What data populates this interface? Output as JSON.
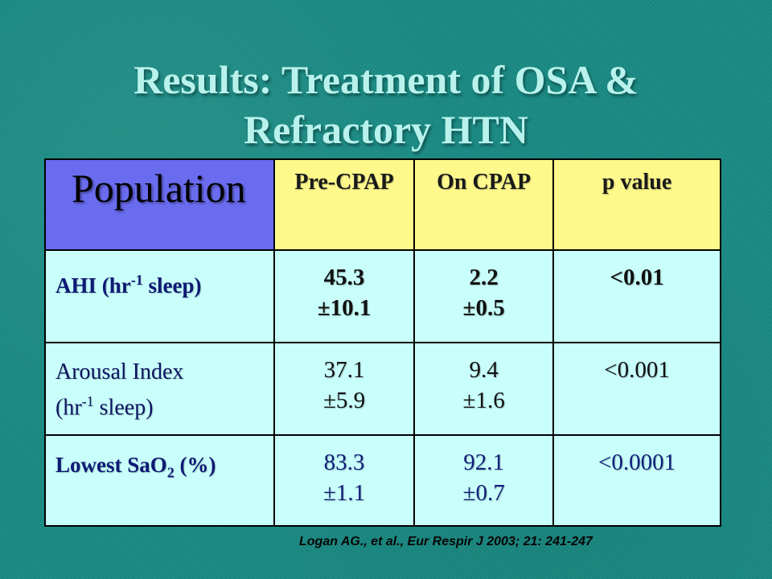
{
  "title": {
    "line1": "Results: Treatment of OSA &",
    "line2": "Refractory HTN"
  },
  "table": {
    "header": {
      "population": "Population",
      "pre_cpap": "Pre-CPAP",
      "on_cpap": "On CPAP",
      "p_value": "p value"
    },
    "rows": [
      {
        "label_main": "AHI (hr",
        "label_sup": "-1",
        "label_tail": " sleep)",
        "pre": [
          "45.3",
          "±10.1"
        ],
        "on": [
          "2.2",
          "±0.5"
        ],
        "p": "<0.01"
      },
      {
        "label_line1": "Arousal Index",
        "label_main": "(hr",
        "label_sup": "-1",
        "label_tail": " sleep)",
        "pre": [
          "37.1",
          "±5.9"
        ],
        "on": [
          "9.4",
          "±1.6"
        ],
        "p": "<0.001"
      },
      {
        "label_main": "Lowest SaO",
        "label_sub": "2",
        "label_tail": " (%)",
        "pre": [
          "83.3",
          "±1.1"
        ],
        "on": [
          "92.1",
          "±0.7"
        ],
        "p": "<0.0001"
      }
    ]
  },
  "citation": "Logan AG., et al., Eur Respir J 2003; 21: 241-247",
  "colors": {
    "background": "#1a8a83",
    "title": "#b9f2ec",
    "header_population": "#6a6cf0",
    "header_columns": "#fff98c",
    "body_cells": "#c9fffb"
  }
}
